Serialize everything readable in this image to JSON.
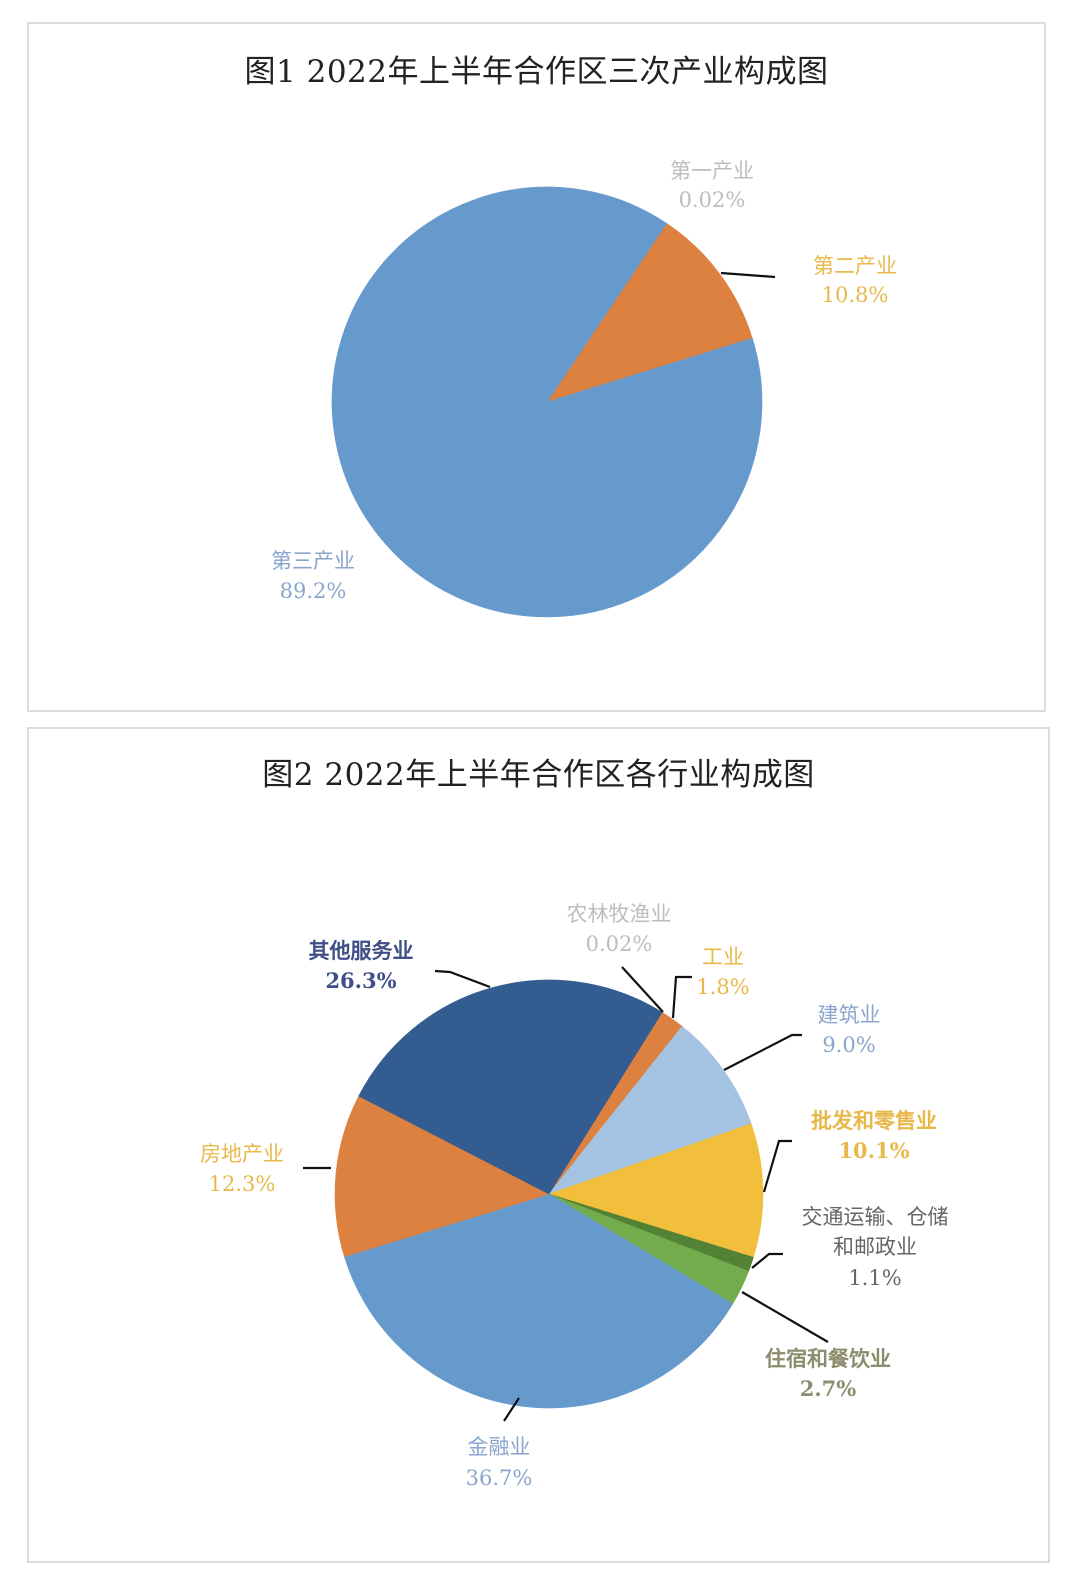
{
  "chart_data": [
    {
      "type": "pie",
      "title": "图1 2022年上半年合作区三次产业构成图",
      "categories": [
        "第一产业",
        "第二产业",
        "第三产业"
      ],
      "values": [
        0.02,
        10.8,
        89.2
      ],
      "value_labels": [
        "0.02%",
        "10.8%",
        "89.2%"
      ],
      "colors": [
        "#A5A5A5",
        "#DD8140",
        "#6699CC"
      ],
      "label_colors": [
        "#BDBDBD",
        "#E8B94A",
        "#8AA6CC"
      ],
      "start_angle_deg": 33.8,
      "legend": "none",
      "data_labels": "outside with leader lines"
    },
    {
      "type": "pie",
      "title": "图2 2022年上半年合作区各行业构成图",
      "categories": [
        "农林牧渔业",
        "工业",
        "建筑业",
        "批发和零售业",
        "交通运输、仓储和邮政业",
        "住宿和餐饮业",
        "金融业",
        "房地产业",
        "其他服务业"
      ],
      "values": [
        0.02,
        1.8,
        9.0,
        10.1,
        1.1,
        2.7,
        36.7,
        12.3,
        26.3
      ],
      "value_labels": [
        "0.02%",
        "1.8%",
        "9.0%",
        "10.1%",
        "1.1%",
        "2.7%",
        "36.7%",
        "12.3%",
        "26.3%"
      ],
      "colors": [
        "#A5A5A5",
        "#DD8140",
        "#A4C2E2",
        "#F2BF3C",
        "#548235",
        "#72AC4D",
        "#6699CC",
        "#DD8140",
        "#335C91"
      ],
      "label_colors": [
        "#BDBDBD",
        "#E8B94A",
        "#8AA6CC",
        "#E8B94A",
        "#666666",
        "#8C8C6E",
        "#8AA6CC",
        "#E8B94A",
        "#3F4F86"
      ],
      "start_angle_deg": 31.9,
      "legend": "none",
      "data_labels": "outside with leader lines"
    }
  ],
  "figure1": {
    "title": "图1 2022年上半年合作区三次产业构成图",
    "labels": [
      {
        "name": "第一产业",
        "value": "0.02%"
      },
      {
        "name": "第二产业",
        "value": "10.8%"
      },
      {
        "name": "第三产业",
        "value": "89.2%"
      }
    ]
  },
  "figure2": {
    "title": "图2 2022年上半年合作区各行业构成图",
    "labels": [
      {
        "name": "农林牧渔业",
        "value": "0.02%"
      },
      {
        "name": "工业",
        "value": "1.8%"
      },
      {
        "name": "建筑业",
        "value": "9.0%"
      },
      {
        "name": "批发和零售业",
        "value": "10.1%"
      },
      {
        "name_line1": "交通运输、仓储",
        "name_line2": "和邮政业",
        "value": "1.1%"
      },
      {
        "name": "住宿和餐饮业",
        "value": "2.7%"
      },
      {
        "name": "金融业",
        "value": "36.7%"
      },
      {
        "name": "房地产业",
        "value": "12.3%"
      },
      {
        "name": "其他服务业",
        "value": "26.3%"
      }
    ]
  }
}
